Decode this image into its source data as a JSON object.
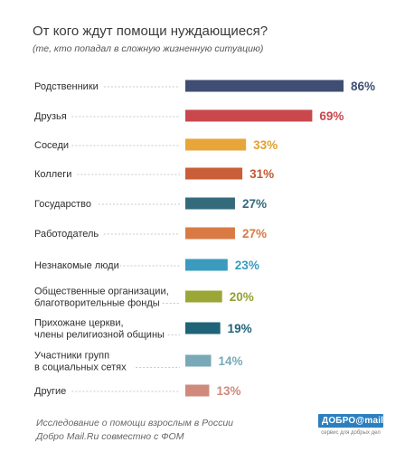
{
  "header": {
    "title": "От кого ждут помощи нуждающиеся?",
    "subtitle": "(те, кто попадал в сложную жизненную ситуацию)"
  },
  "chart_data": {
    "type": "bar",
    "orientation": "horizontal",
    "title": "От кого ждут помощи нуждающиеся?",
    "subtitle": "(те, кто попадал в сложную жизненную ситуацию)",
    "unit": "%",
    "xlim": [
      0,
      86
    ],
    "grid": false,
    "categories": [
      [
        "Родственники"
      ],
      [
        "Друзья"
      ],
      [
        "Соседи"
      ],
      [
        "Коллеги"
      ],
      [
        "Государство"
      ],
      [
        "Работодатель"
      ],
      [
        "Незнакомые люди"
      ],
      [
        "Общественные организации,",
        "благотворительные фонды"
      ],
      [
        "Прихожане церкви,",
        "члены религиозной общины"
      ],
      [
        "Участники групп",
        "в социальных сетях"
      ],
      [
        "Другие"
      ]
    ],
    "values": [
      86,
      69,
      33,
      31,
      27,
      27,
      23,
      20,
      19,
      14,
      13
    ],
    "value_labels": [
      "86%",
      "69%",
      "33%",
      "31%",
      "27%",
      "27%",
      "23%",
      "20%",
      "19%",
      "14%",
      "13%"
    ],
    "bar_colors": [
      "#3f4e72",
      "#c9484d",
      "#e8a53a",
      "#c85f38",
      "#356a7d",
      "#d97a45",
      "#3a9bbf",
      "#9aa737",
      "#1f6478",
      "#79a8b6",
      "#cf8a7c"
    ],
    "label_colors": [
      "#3f4e72",
      "#c9484d",
      "#e0a030",
      "#c05a35",
      "#356a7d",
      "#d97a45",
      "#3a9bbf",
      "#93a030",
      "#1f6478",
      "#79a8b6",
      "#cf8a7c"
    ]
  },
  "footer": {
    "source_line1": "Исследование о помощи взрослым в России",
    "source_line2": "Добро Mail.Ru совместно с ФОМ",
    "brand_logo": "ДОБРО@mail.ru",
    "brand_tagline": "сервис для добрых дел"
  }
}
